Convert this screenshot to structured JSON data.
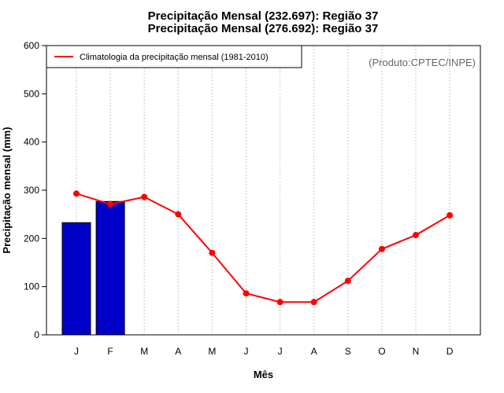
{
  "chart_data": {
    "type": "bar+line",
    "title_lines": [
      "Precipitação Mensal (232.697): Região 37",
      "Precipitação Mensal (276.692): Região 37"
    ],
    "credit": "(Produto:CPTEC/INPE)",
    "xlabel": "Mês",
    "ylabel": "Precipitação mensal (mm)",
    "categories": [
      "J",
      "F",
      "M",
      "A",
      "M",
      "J",
      "J",
      "A",
      "S",
      "O",
      "N",
      "D"
    ],
    "ylim": [
      0,
      600
    ],
    "yticks": [
      0,
      100,
      200,
      300,
      400,
      500,
      600
    ],
    "grid": "vertical dotted",
    "legend": {
      "position": "top-left",
      "entries": [
        "Climatologia da precipitação mensal (1981-2010)"
      ]
    },
    "bars": {
      "name": "Precipitação mensal",
      "values": [
        232.697,
        276.692
      ],
      "color": "#0000c8"
    },
    "line": {
      "name": "Climatologia da precipitação mensal (1981-2010)",
      "values": [
        293,
        271,
        286,
        250,
        170,
        86,
        68,
        68,
        112,
        178,
        207,
        248
      ],
      "color": "#ff0000"
    }
  }
}
